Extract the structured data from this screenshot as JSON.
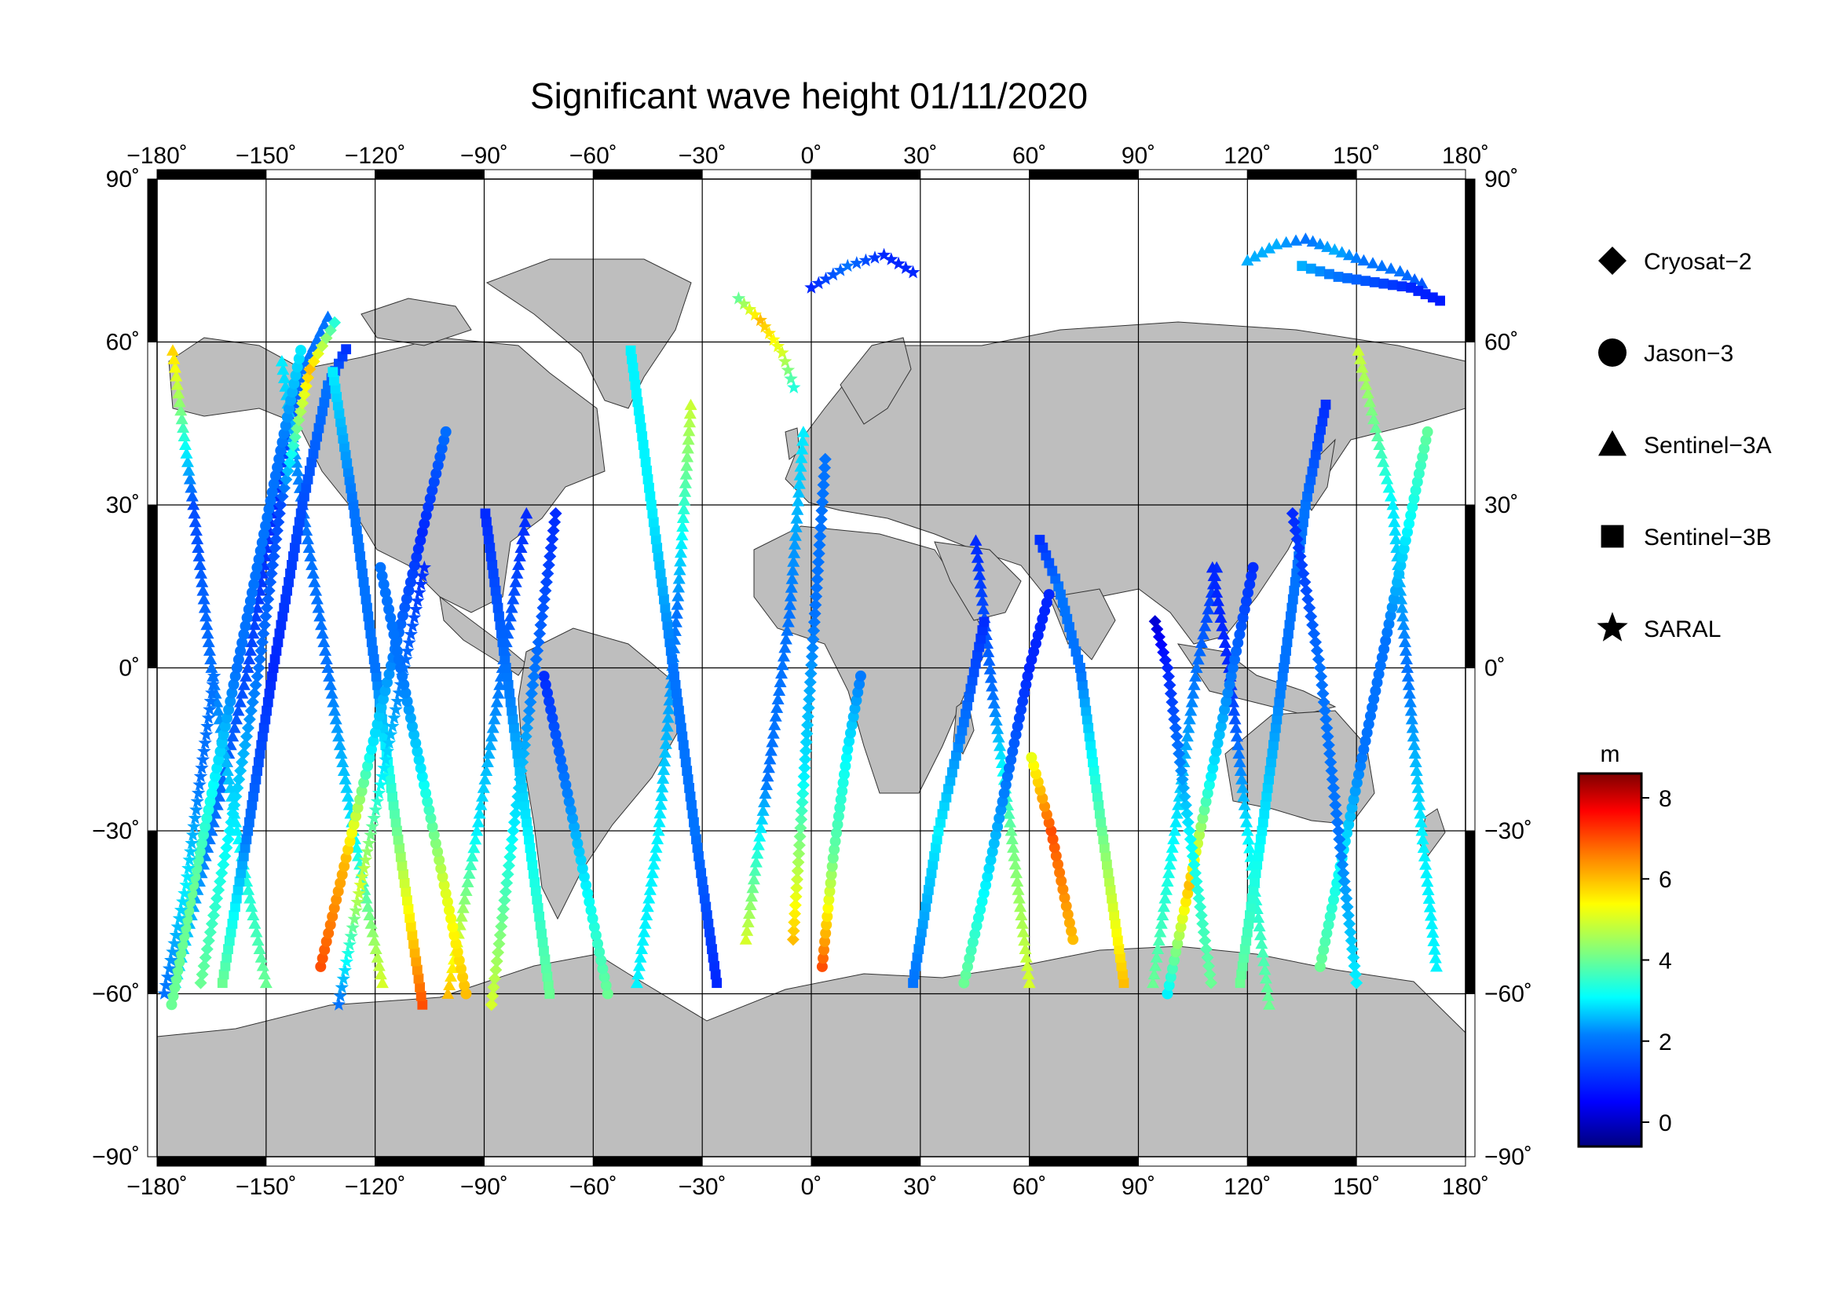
{
  "title": "Significant wave height 01/11/2020",
  "map": {
    "lon_ticks": [
      "−180˚",
      "−150˚",
      "−120˚",
      "−90˚",
      "−60˚",
      "−30˚",
      "0˚",
      "30˚",
      "60˚",
      "90˚",
      "120˚",
      "150˚",
      "180˚"
    ],
    "lat_ticks": [
      "90˚",
      "60˚",
      "30˚",
      "0˚",
      "−30˚",
      "−60˚",
      "−90˚"
    ],
    "lon_values": [
      -180,
      -150,
      -120,
      -90,
      -60,
      -30,
      0,
      30,
      60,
      90,
      120,
      150,
      180
    ],
    "lat_values": [
      90,
      60,
      30,
      0,
      -30,
      -60,
      -90
    ],
    "land_color": "#bebebe",
    "frame_color": "#000000"
  },
  "legend": {
    "items": [
      {
        "label": "Cryosat−2",
        "symbol": "diamond"
      },
      {
        "label": "Jason−3",
        "symbol": "circle"
      },
      {
        "label": "Sentinel−3A",
        "symbol": "triangle"
      },
      {
        "label": "Sentinel−3B",
        "symbol": "square"
      },
      {
        "label": "SARAL",
        "symbol": "star"
      }
    ]
  },
  "colorbar": {
    "unit": "m",
    "ticks": [
      "8",
      "6",
      "4",
      "2",
      "0"
    ],
    "tick_values": [
      8,
      6,
      4,
      2,
      0
    ],
    "range": [
      -0.6,
      8.6
    ],
    "colors": [
      "#00007f",
      "#0000ff",
      "#007fff",
      "#00ffff",
      "#7fff7f",
      "#ffff00",
      "#ff7f00",
      "#ff0000",
      "#7f0000"
    ]
  },
  "chart_data": {
    "type": "scatter",
    "xlim": [
      -180,
      180
    ],
    "ylim": [
      -90,
      90
    ],
    "series": [
      {
        "name": "Sentinel−3A",
        "symbol": "triangle",
        "tracks": [
          {
            "lon": [
              -175,
              -165,
              -155,
              -148,
              -140,
              -132
            ],
            "lat": [
              -58,
              -30,
              0,
              30,
              55,
              66
            ],
            "swh": [
              3,
              2,
              1.5,
              1,
              2,
              2
            ]
          },
          {
            "lon": [
              -150,
              -158,
              -165,
              -170,
              -176
            ],
            "lat": [
              -58,
              -30,
              0,
              30,
              60
            ],
            "swh": [
              4,
              3,
              2,
              1.5,
              6
            ]
          },
          {
            "lon": [
              -118,
              -126,
              -133,
              -140,
              -146
            ],
            "lat": [
              -58,
              -30,
              0,
              30,
              58
            ],
            "swh": [
              5,
              3,
              2,
              2,
              3
            ]
          },
          {
            "lon": [
              -100,
              -92,
              -85,
              -78
            ],
            "lat": [
              -60,
              -30,
              0,
              30
            ],
            "swh": [
              6,
              3,
              2,
              1
            ]
          },
          {
            "lon": [
              -48,
              -42,
              -37,
              -33
            ],
            "lat": [
              -58,
              -30,
              10,
              50
            ],
            "swh": [
              3,
              3,
              2,
              5
            ]
          },
          {
            "lon": [
              -18,
              -12,
              -6,
              -2
            ],
            "lat": [
              -50,
              -20,
              10,
              45
            ],
            "swh": [
              5,
              2,
              2,
              3
            ]
          },
          {
            "lon": [
              60,
              55,
              50,
              45
            ],
            "lat": [
              -58,
              -30,
              -5,
              25
            ],
            "swh": [
              5,
              4,
              2,
              1
            ]
          },
          {
            "lon": [
              94,
              100,
              106,
              112
            ],
            "lat": [
              -58,
              -30,
              0,
              20
            ],
            "swh": [
              4,
              3,
              2,
              1
            ]
          },
          {
            "lon": [
              126,
              120,
              115,
              110
            ],
            "lat": [
              -62,
              -30,
              0,
              20
            ],
            "swh": [
              4,
              3,
              1,
              1
            ]
          },
          {
            "lon": [
              172,
              168,
              164,
              160,
              150
            ],
            "lat": [
              -55,
              -30,
              0,
              30,
              60
            ],
            "swh": [
              3,
              3,
              2,
              3,
              5
            ]
          },
          {
            "lon": [
              120,
              128,
              136,
              144,
              152,
              162,
              170
            ],
            "lat": [
              75,
              78,
              79,
              77,
              75,
              73,
              70
            ],
            "swh": [
              2.5,
              2.5,
              2,
              2.5,
              2,
              2,
              1.5
            ]
          }
        ]
      },
      {
        "name": "Sentinel−3B",
        "symbol": "square",
        "tracks": [
          {
            "lon": [
              -162,
              -155,
              -148,
              -140,
              -133,
              -127
            ],
            "lat": [
              -58,
              -30,
              0,
              30,
              52,
              60
            ],
            "swh": [
              4,
              2,
              1,
              1.5,
              2,
              1
            ]
          },
          {
            "lon": [
              -107,
              -114,
              -120,
              -126,
              -132
            ],
            "lat": [
              -62,
              -30,
              0,
              30,
              56
            ],
            "swh": [
              7,
              4,
              2,
              2,
              3
            ]
          },
          {
            "lon": [
              -72,
              -78,
              -84,
              -90
            ],
            "lat": [
              -60,
              -30,
              0,
              30
            ],
            "swh": [
              4,
              3,
              2,
              1
            ]
          },
          {
            "lon": [
              -26,
              -32,
              -38,
              -44,
              -50
            ],
            "lat": [
              -58,
              -30,
              0,
              30,
              60
            ],
            "swh": [
              1,
              2,
              2,
              3,
              3
            ]
          },
          {
            "lon": [
              28,
              35,
              42,
              48
            ],
            "lat": [
              -58,
              -30,
              -10,
              10
            ],
            "swh": [
              2,
              3,
              2,
              1
            ]
          },
          {
            "lon": [
              86,
              80,
              74,
              68,
              62
            ],
            "lat": [
              -58,
              -30,
              0,
              15,
              25
            ],
            "swh": [
              6,
              4,
              2,
              2,
              1
            ]
          },
          {
            "lon": [
              118,
              124,
              130,
              136,
              142
            ],
            "lat": [
              -58,
              -30,
              0,
              30,
              50
            ],
            "swh": [
              4,
              3,
              2,
              2,
              1
            ]
          },
          {
            "lon": [
              135,
              145,
              155,
              165,
              175
            ],
            "lat": [
              74,
              72,
              71,
              70,
              67
            ],
            "swh": [
              2.5,
              2,
              1.5,
              1,
              0.8
            ]
          }
        ]
      },
      {
        "name": "Jason−3",
        "symbol": "circle",
        "tracks": [
          {
            "lon": [
              -176,
              -170,
              -164,
              -158,
              -152,
              -146,
              -140
            ],
            "lat": [
              -62,
              -40,
              -20,
              0,
              20,
              40,
              60
            ],
            "swh": [
              4,
              4,
              3,
              2,
              2,
              2,
              3
            ]
          },
          {
            "lon": [
              -135,
              -128,
              -121,
              -114,
              -107,
              -100
            ],
            "lat": [
              -55,
              -35,
              -15,
              5,
              25,
              45
            ],
            "swh": [
              7,
              6,
              3,
              2,
              1,
              2
            ]
          },
          {
            "lon": [
              -95,
              -101,
              -107,
              -113,
              -119
            ],
            "lat": [
              -60,
              -40,
              -20,
              0,
              20
            ],
            "swh": [
              6,
              5,
              3,
              2,
              2
            ]
          },
          {
            "lon": [
              -56,
              -62,
              -68,
              -74
            ],
            "lat": [
              -60,
              -40,
              -20,
              0
            ],
            "swh": [
              4,
              3,
              2,
              1
            ]
          },
          {
            "lon": [
              3,
              6,
              10,
              14
            ],
            "lat": [
              -55,
              -35,
              -15,
              0
            ],
            "swh": [
              7,
              4,
              3,
              2
            ]
          },
          {
            "lon": [
              42,
              48,
              54,
              60,
              66
            ],
            "lat": [
              -58,
              -40,
              -20,
              0,
              15
            ],
            "swh": [
              4,
              3,
              2,
              1,
              1
            ]
          },
          {
            "lon": [
              72,
              66,
              60
            ],
            "lat": [
              -50,
              -30,
              -15
            ],
            "swh": [
              6,
              7,
              5
            ]
          },
          {
            "lon": [
              98,
              104,
              110,
              116,
              122
            ],
            "lat": [
              -60,
              -40,
              -20,
              0,
              20
            ],
            "swh": [
              3,
              6,
              3,
              2,
              1
            ]
          },
          {
            "lon": [
              140,
              146,
              152,
              158,
              164,
              170
            ],
            "lat": [
              -55,
              -35,
              -15,
              5,
              25,
              45
            ],
            "swh": [
              4,
              3,
              2,
              2,
              3,
              4
            ]
          }
        ]
      },
      {
        "name": "Cryosat−2",
        "symbol": "diamond",
        "tracks": [
          {
            "lon": [
              -168,
              -160,
              -152,
              -146,
              -138,
              -130
            ],
            "lat": [
              -58,
              -30,
              0,
              30,
              55,
              65
            ],
            "swh": [
              4,
              3,
              2,
              1.5,
              6,
              3
            ]
          },
          {
            "lon": [
              -88,
              -82,
              -76,
              -70
            ],
            "lat": [
              -62,
              -30,
              0,
              30
            ],
            "swh": [
              5,
              3,
              2,
              1
            ]
          },
          {
            "lon": [
              -5,
              -2,
              1,
              4
            ],
            "lat": [
              -50,
              -20,
              10,
              40
            ],
            "swh": [
              6,
              3,
              2,
              2
            ]
          },
          {
            "lon": [
              110,
              104,
              98,
              94
            ],
            "lat": [
              -58,
              -30,
              0,
              10
            ],
            "swh": [
              4,
              3,
              1,
              0
            ]
          },
          {
            "lon": [
              150,
              145,
              140,
              132
            ],
            "lat": [
              -58,
              -30,
              0,
              30
            ],
            "swh": [
              3,
              2,
              2,
              1
            ]
          }
        ]
      },
      {
        "name": "SARAL",
        "symbol": "star",
        "tracks": [
          {
            "lon": [
              -130,
              -124,
              -118,
              -112,
              -106
            ],
            "lat": [
              -62,
              -40,
              -20,
              0,
              20
            ],
            "swh": [
              2,
              5,
              3,
              2,
              1
            ]
          },
          {
            "lon": [
              -20,
              -14,
              -8,
              -4
            ],
            "lat": [
              68,
              64,
              58,
              50
            ],
            "swh": [
              4,
              6,
              5,
              3
            ]
          },
          {
            "lon": [
              0,
              10,
              20,
              30
            ],
            "lat": [
              70,
              74,
              76,
              72
            ],
            "swh": [
              1,
              2,
              1,
              1
            ]
          },
          {
            "lon": [
              -178,
              -172,
              -168,
              -164
            ],
            "lat": [
              -60,
              -40,
              -20,
              0
            ],
            "swh": [
              2,
              3,
              2,
              2
            ]
          }
        ]
      }
    ]
  }
}
